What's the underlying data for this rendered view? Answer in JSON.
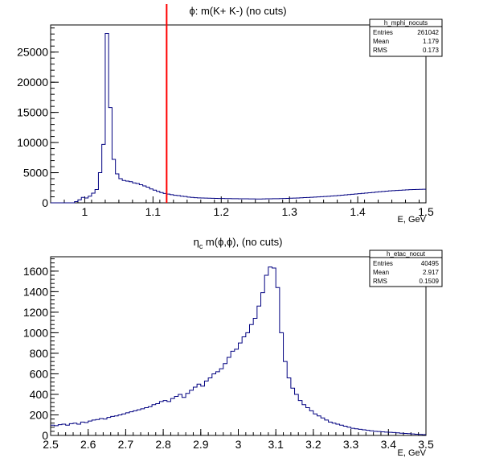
{
  "chart_data": [
    {
      "type": "histogram",
      "title": "ϕ: m(K+ K-) (no cuts)",
      "title_parts": {
        "symbol": "ϕ",
        "rest": ": m(K+ K-) (no cuts)"
      },
      "xlabel": "E, GeV",
      "ylabel": "",
      "xlim": [
        0.95,
        1.5
      ],
      "ylim": [
        0,
        29500
      ],
      "x_ticks": [
        1,
        1.1,
        1.2,
        1.3,
        1.4,
        1.5
      ],
      "x_tick_labels": [
        "1",
        "1.1",
        "1.2",
        "1.3",
        "1.4",
        "1.5"
      ],
      "y_ticks": [
        0,
        5000,
        10000,
        15000,
        20000,
        25000
      ],
      "y_tick_labels": [
        "0",
        "5000",
        "10000",
        "15000",
        "20000",
        "25000"
      ],
      "grid": false,
      "line_color": "#000080",
      "cut_line": {
        "x": 1.12,
        "color": "#ff0000"
      },
      "stats_box": {
        "name": "h_mphi_nocuts",
        "rows": [
          {
            "label": "Entries",
            "value": "261042"
          },
          {
            "label": "Mean",
            "value": "1.179"
          },
          {
            "label": "RMS",
            "value": "0.173"
          }
        ]
      },
      "bins": {
        "x_start": 0.95,
        "bin_width": 0.005,
        "values": [
          0,
          0,
          0,
          0,
          0,
          0,
          0,
          200,
          500,
          900,
          800,
          1100,
          1600,
          2200,
          5000,
          9700,
          28100,
          15800,
          7200,
          4800,
          4000,
          3700,
          3600,
          3500,
          3300,
          3200,
          3000,
          2800,
          2600,
          2300,
          2100,
          1900,
          1700,
          1550,
          1450,
          1350,
          1250,
          1200,
          1100,
          1050,
          950,
          900,
          850,
          820,
          800,
          780,
          760,
          750,
          740,
          720,
          710,
          700,
          700,
          690,
          680,
          670,
          670,
          660,
          650,
          650,
          640,
          640,
          650,
          660,
          670,
          680,
          690,
          700,
          720,
          740,
          760,
          780,
          800,
          830,
          860,
          890,
          920,
          950,
          980,
          1010,
          1050,
          1090,
          1130,
          1170,
          1210,
          1260,
          1310,
          1360,
          1410,
          1460,
          1520,
          1570,
          1620,
          1670,
          1720,
          1780,
          1830,
          1880,
          1930,
          1980,
          2020,
          2060,
          2090,
          2120,
          2150,
          2180,
          2200,
          2220,
          2240,
          2250
        ]
      }
    },
    {
      "type": "histogram",
      "title": "ηc m(ϕ,ϕ), (no cuts)",
      "title_parts": {
        "eta": "η",
        "sub": "c",
        "m": " m(",
        "phi1": "ϕ",
        "comma": ",",
        "phi2": "ϕ",
        "rest": "), (no cuts)"
      },
      "xlabel": "E, GeV",
      "ylabel": "",
      "xlim": [
        2.5,
        3.5
      ],
      "ylim": [
        0,
        1740
      ],
      "x_ticks": [
        2.5,
        2.6,
        2.7,
        2.8,
        2.9,
        3.0,
        3.1,
        3.2,
        3.3,
        3.4,
        3.5
      ],
      "x_tick_labels": [
        "2.5",
        "2.6",
        "2.7",
        "2.8",
        "2.9",
        "3",
        "3.1",
        "3.2",
        "3.3",
        "3.4",
        "3.5"
      ],
      "y_ticks": [
        0,
        200,
        400,
        600,
        800,
        1000,
        1200,
        1400,
        1600
      ],
      "y_tick_labels": [
        "0",
        "200",
        "400",
        "600",
        "800",
        "1000",
        "1200",
        "1400",
        "1600"
      ],
      "grid": false,
      "line_color": "#000080",
      "stats_box": {
        "name": "h_etac_nocut",
        "rows": [
          {
            "label": "Entries",
            "value": "40495"
          },
          {
            "label": "Mean",
            "value": "2.917"
          },
          {
            "label": "RMS",
            "value": "0.1509"
          }
        ]
      },
      "bins": {
        "x_start": 2.5,
        "bin_width": 0.01,
        "values": [
          100,
          95,
          105,
          110,
          100,
          115,
          120,
          110,
          130,
          125,
          140,
          150,
          155,
          165,
          160,
          175,
          185,
          190,
          200,
          210,
          220,
          230,
          240,
          250,
          260,
          270,
          280,
          300,
          310,
          330,
          340,
          330,
          360,
          380,
          400,
          370,
          410,
          440,
          470,
          500,
          480,
          530,
          560,
          600,
          620,
          650,
          700,
          760,
          820,
          840,
          900,
          960,
          1000,
          1080,
          1140,
          1260,
          1390,
          1560,
          1640,
          1630,
          1440,
          1000,
          720,
          560,
          460,
          400,
          340,
          300,
          270,
          240,
          210,
          190,
          170,
          150,
          130,
          120,
          110,
          100,
          90,
          80,
          70,
          65,
          60,
          55,
          50,
          45,
          40,
          38,
          35,
          32,
          30,
          28,
          25,
          22,
          20,
          18,
          15,
          12,
          10,
          8
        ]
      }
    }
  ]
}
